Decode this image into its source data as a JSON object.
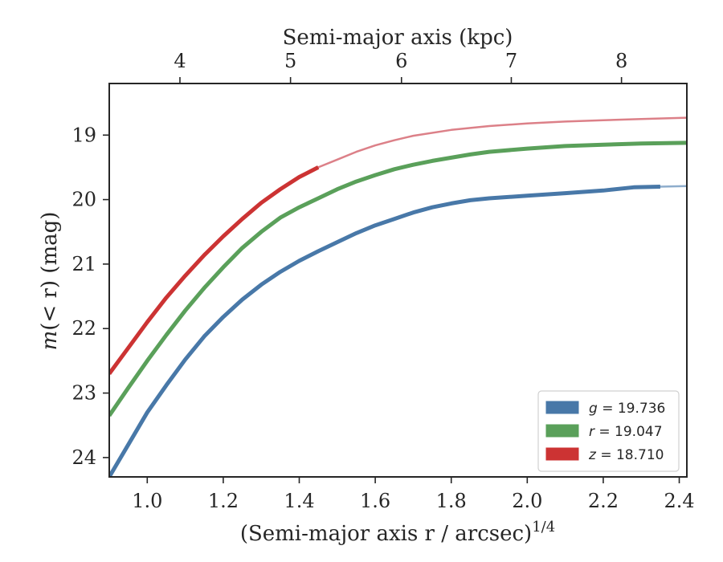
{
  "chart_data": {
    "type": "line",
    "xlabel": "(Semi-major axis r / arcsec)",
    "xlabel_exponent": "1/4",
    "ylabel_parts": {
      "m": "m",
      "inner": "(< r)",
      "unit": " (mag)"
    },
    "top_xlabel": "Semi-major axis (kpc)",
    "xlim": [
      0.9,
      2.42
    ],
    "ylim": [
      24.3,
      18.2
    ],
    "y_inverted": true,
    "grid": false,
    "legend_position": "lower-right",
    "x_ticks": [
      1.0,
      1.2,
      1.4,
      1.6,
      1.8,
      2.0,
      2.2,
      2.4
    ],
    "x_tick_labels": [
      "1.0",
      "1.2",
      "1.4",
      "1.6",
      "1.8",
      "2.0",
      "2.2",
      "2.4"
    ],
    "y_ticks": [
      19,
      20,
      21,
      22,
      23,
      24
    ],
    "y_tick_labels": [
      "19",
      "20",
      "21",
      "22",
      "23",
      "24"
    ],
    "top_ticks": [
      {
        "label": "4",
        "x": 1.086
      },
      {
        "label": "5",
        "x": 1.377
      },
      {
        "label": "6",
        "x": 1.669
      },
      {
        "label": "7",
        "x": 1.958
      },
      {
        "label": "8",
        "x": 2.248
      }
    ],
    "series": [
      {
        "name": "g = 19.736",
        "legend_var": "g",
        "legend_value": " = 19.736",
        "color": "#4878a8",
        "fit_color": "#8eadcc",
        "data_end": 2.35,
        "points": [
          [
            0.9,
            24.3
          ],
          [
            0.95,
            23.8
          ],
          [
            1.0,
            23.3
          ],
          [
            1.05,
            22.88
          ],
          [
            1.1,
            22.48
          ],
          [
            1.15,
            22.12
          ],
          [
            1.2,
            21.82
          ],
          [
            1.25,
            21.55
          ],
          [
            1.3,
            21.32
          ],
          [
            1.35,
            21.12
          ],
          [
            1.4,
            20.95
          ],
          [
            1.45,
            20.8
          ],
          [
            1.5,
            20.66
          ],
          [
            1.55,
            20.52
          ],
          [
            1.6,
            20.4
          ],
          [
            1.65,
            20.3
          ],
          [
            1.7,
            20.2
          ],
          [
            1.75,
            20.12
          ],
          [
            1.8,
            20.06
          ],
          [
            1.85,
            20.01
          ],
          [
            1.9,
            19.98
          ],
          [
            2.0,
            19.94
          ],
          [
            2.1,
            19.9
          ],
          [
            2.2,
            19.86
          ],
          [
            2.28,
            19.81
          ],
          [
            2.35,
            19.8
          ],
          [
            2.42,
            19.79
          ]
        ]
      },
      {
        "name": "r = 19.047",
        "legend_var": "r",
        "legend_value": " = 19.047",
        "color": "#5aa05a",
        "fit_color": "#9cc89c",
        "data_end": 2.42,
        "points": [
          [
            0.9,
            23.35
          ],
          [
            0.95,
            22.92
          ],
          [
            1.0,
            22.5
          ],
          [
            1.05,
            22.1
          ],
          [
            1.1,
            21.72
          ],
          [
            1.15,
            21.37
          ],
          [
            1.2,
            21.05
          ],
          [
            1.25,
            20.75
          ],
          [
            1.3,
            20.5
          ],
          [
            1.35,
            20.28
          ],
          [
            1.4,
            20.12
          ],
          [
            1.45,
            19.98
          ],
          [
            1.5,
            19.84
          ],
          [
            1.55,
            19.72
          ],
          [
            1.6,
            19.62
          ],
          [
            1.65,
            19.53
          ],
          [
            1.7,
            19.46
          ],
          [
            1.75,
            19.4
          ],
          [
            1.8,
            19.35
          ],
          [
            1.85,
            19.3
          ],
          [
            1.9,
            19.26
          ],
          [
            2.0,
            19.21
          ],
          [
            2.1,
            19.17
          ],
          [
            2.2,
            19.15
          ],
          [
            2.3,
            19.13
          ],
          [
            2.42,
            19.12
          ]
        ]
      },
      {
        "name": "z = 18.710",
        "legend_var": "z",
        "legend_value": " = 18.710",
        "color": "#cc3333",
        "fit_color": "#dc8088",
        "data_end": 1.45,
        "points": [
          [
            0.9,
            22.7
          ],
          [
            0.95,
            22.3
          ],
          [
            1.0,
            21.9
          ],
          [
            1.05,
            21.52
          ],
          [
            1.1,
            21.18
          ],
          [
            1.15,
            20.86
          ],
          [
            1.2,
            20.57
          ],
          [
            1.25,
            20.3
          ],
          [
            1.3,
            20.05
          ],
          [
            1.35,
            19.84
          ],
          [
            1.4,
            19.65
          ],
          [
            1.45,
            19.5
          ],
          [
            1.5,
            19.38
          ],
          [
            1.55,
            19.26
          ],
          [
            1.6,
            19.16
          ],
          [
            1.65,
            19.08
          ],
          [
            1.7,
            19.01
          ],
          [
            1.8,
            18.92
          ],
          [
            1.9,
            18.86
          ],
          [
            2.0,
            18.82
          ],
          [
            2.1,
            18.79
          ],
          [
            2.2,
            18.77
          ],
          [
            2.3,
            18.75
          ],
          [
            2.42,
            18.73
          ]
        ]
      }
    ]
  }
}
